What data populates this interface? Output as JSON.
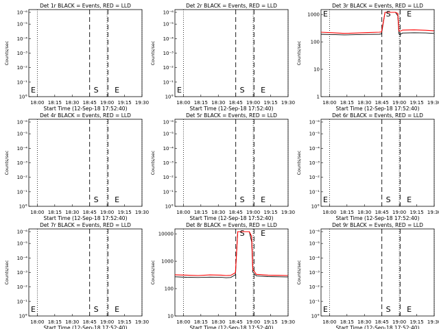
{
  "chart_data": [
    {
      "type": "line",
      "title": "Det 1r BLACK = Events, RED = LLD",
      "xlabel": "Start Time (12-Sep-18 17:52:40)",
      "ylabel": "Counts/sec",
      "x_ticks": [
        "18:00",
        "18:15",
        "18:30",
        "18:45",
        "19:00",
        "19:15",
        "19:30"
      ],
      "y_ticks": [
        "10°",
        "10⁻¹",
        "10⁻²",
        "10⁻³",
        "10⁻⁴",
        "10⁻⁵",
        "10⁻⁶"
      ],
      "y_scale": "log",
      "x_minutes": [
        0,
        97.3
      ],
      "ylim_exp": [
        0,
        -6
      ],
      "markers": [
        {
          "label": "E",
          "x": 0
        },
        {
          "label": "S",
          "x": 54
        },
        {
          "label": "E",
          "x": 72
        }
      ],
      "dotted_lines_x": [
        7.3,
        67.3,
        97.3
      ],
      "dashed_lines_x": [
        52.3,
        68
      ],
      "series": []
    },
    {
      "type": "line",
      "title": "Det 2r BLACK = Events, RED = LLD",
      "xlabel": "Start Time (12-Sep-18 17:52:40)",
      "ylabel": "Counts/sec",
      "x_ticks": [
        "18:00",
        "18:15",
        "18:30",
        "18:45",
        "19:00",
        "19:15",
        "19:30"
      ],
      "y_ticks": [
        "10°",
        "10⁻¹",
        "10⁻²",
        "10⁻³",
        "10⁻⁴",
        "10⁻⁵",
        "10⁻⁶"
      ],
      "y_scale": "log",
      "x_minutes": [
        0,
        97.3
      ],
      "ylim_exp": [
        0,
        -6
      ],
      "markers": [
        {
          "label": "E",
          "x": 0
        },
        {
          "label": "S",
          "x": 54
        },
        {
          "label": "E",
          "x": 72
        }
      ],
      "dotted_lines_x": [
        7.3,
        67.3,
        97.3
      ],
      "dashed_lines_x": [
        52.3,
        68
      ],
      "series": []
    },
    {
      "type": "line",
      "title": "Det 3r BLACK = Events, RED = LLD",
      "xlabel": "Start Time (12-Sep-18 17:52:40)",
      "ylabel": "Counts/sec",
      "x_ticks": [
        "18:00",
        "18:15",
        "18:30",
        "18:45",
        "19:00",
        "19:15",
        "19:30"
      ],
      "y_ticks": [
        "1000",
        "100",
        "10",
        "1"
      ],
      "y_scale": "log",
      "x_minutes": [
        0,
        97.3
      ],
      "ylim": [
        1,
        1200
      ],
      "markers": [
        {
          "label": "E",
          "x": 0
        },
        {
          "label": "S",
          "x": 54
        },
        {
          "label": "E",
          "x": 72
        }
      ],
      "dotted_lines_x": [
        7.3,
        67.3,
        97.3
      ],
      "dashed_lines_x": [
        52.3,
        68
      ],
      "series": [
        {
          "color": "#000000",
          "x": [
            0,
            10,
            20,
            30,
            40,
            50,
            52,
            55,
            60,
            64,
            66,
            67,
            68,
            70,
            80,
            90,
            97
          ],
          "y": [
            190,
            185,
            180,
            183,
            188,
            190,
            195,
            1200,
            1200,
            1200,
            900,
            200,
            185,
            210,
            215,
            212,
            205
          ]
        },
        {
          "color": "#ff0000",
          "x": [
            0,
            10,
            20,
            30,
            40,
            50,
            52,
            55,
            60,
            64,
            66,
            67,
            68,
            70,
            80,
            90,
            97
          ],
          "y": [
            225,
            215,
            205,
            210,
            218,
            225,
            230,
            1200,
            1200,
            1200,
            1100,
            250,
            245,
            270,
            275,
            265,
            255
          ]
        }
      ]
    },
    {
      "type": "line",
      "title": "Det 4r BLACK = Events, RED = LLD",
      "xlabel": "Start Time (12-Sep-18 17:52:40)",
      "ylabel": "Counts/sec",
      "x_ticks": [
        "18:00",
        "18:15",
        "18:30",
        "18:45",
        "19:00",
        "19:15",
        "19:30"
      ],
      "y_ticks": [
        "10°",
        "10⁻¹",
        "10⁻²",
        "10⁻³",
        "10⁻⁴",
        "10⁻⁵",
        "10⁻⁶"
      ],
      "y_scale": "log",
      "x_minutes": [
        0,
        97.3
      ],
      "ylim_exp": [
        0,
        -6
      ],
      "markers": [
        {
          "label": "S",
          "x": 54
        },
        {
          "label": "E",
          "x": 72
        }
      ],
      "dotted_lines_x": [
        7.3,
        67.3,
        97.3
      ],
      "dashed_lines_x": [
        52.3,
        68
      ],
      "series": []
    },
    {
      "type": "line",
      "title": "Det 5r BLACK = Events, RED = LLD",
      "xlabel": "Start Time (12-Sep-18 17:52:40)",
      "ylabel": "Counts/sec",
      "x_ticks": [
        "18:00",
        "18:15",
        "18:30",
        "18:45",
        "19:00",
        "19:15",
        "19:30"
      ],
      "y_ticks": [
        "10°",
        "10⁻¹",
        "10⁻²",
        "10⁻³",
        "10⁻⁴",
        "10⁻⁵",
        "10⁻⁶"
      ],
      "y_scale": "log",
      "x_minutes": [
        0,
        97.3
      ],
      "ylim_exp": [
        0,
        -6
      ],
      "markers": [
        {
          "label": "S",
          "x": 54
        },
        {
          "label": "E",
          "x": 72
        }
      ],
      "dotted_lines_x": [
        7.3,
        67.3,
        97.3
      ],
      "dashed_lines_x": [
        52.3,
        68
      ],
      "series": []
    },
    {
      "type": "line",
      "title": "Det 6r BLACK = Events, RED = LLD",
      "xlabel": "Start Time (12-Sep-18 17:52:40)",
      "ylabel": "Counts/sec",
      "x_ticks": [
        "18:00",
        "18:15",
        "18:30",
        "18:45",
        "19:00",
        "19:15",
        "19:30"
      ],
      "y_ticks": [
        "10°",
        "10⁻¹",
        "10⁻²",
        "10⁻³",
        "10⁻⁴",
        "10⁻⁵",
        "10⁻⁶"
      ],
      "y_scale": "log",
      "x_minutes": [
        0,
        97.3
      ],
      "ylim_exp": [
        0,
        -6
      ],
      "markers": [
        {
          "label": "E",
          "x": 0
        },
        {
          "label": "S",
          "x": 54
        },
        {
          "label": "E",
          "x": 72
        }
      ],
      "dotted_lines_x": [
        7.3,
        67.3,
        97.3
      ],
      "dashed_lines_x": [
        52.3,
        68
      ],
      "series": []
    },
    {
      "type": "line",
      "title": "Det 7r BLACK = Events, RED = LLD",
      "xlabel": "Start Time (12-Sep-18 17:52:40)",
      "ylabel": "Counts/sec",
      "x_ticks": [
        "18:00",
        "18:15",
        "18:30",
        "18:45",
        "19:00",
        "19:15",
        "19:30"
      ],
      "y_ticks": [
        "10°",
        "10⁻¹",
        "10⁻²",
        "10⁻³",
        "10⁻⁴",
        "10⁻⁵",
        "10⁻⁶"
      ],
      "y_scale": "log",
      "x_minutes": [
        0,
        97.3
      ],
      "ylim_exp": [
        0,
        -6
      ],
      "markers": [
        {
          "label": "E",
          "x": 0
        },
        {
          "label": "S",
          "x": 54
        },
        {
          "label": "E",
          "x": 72
        }
      ],
      "dotted_lines_x": [
        7.3,
        67.3,
        97.3
      ],
      "dashed_lines_x": [
        52.3,
        68
      ],
      "series": []
    },
    {
      "type": "line",
      "title": "Det 8r BLACK = Events, RED = LLD",
      "xlabel": "Start Time (12-Sep-18 17:52:40)",
      "ylabel": "Counts/sec",
      "x_ticks": [
        "18:00",
        "18:15",
        "18:30",
        "18:45",
        "19:00",
        "19:15",
        "19:30"
      ],
      "y_ticks": [
        "10000",
        "1000",
        "100",
        "10"
      ],
      "y_scale": "log",
      "x_minutes": [
        0,
        97.3
      ],
      "ylim": [
        10,
        12000
      ],
      "markers": [
        {
          "label": "S",
          "x": 54
        },
        {
          "label": "E",
          "x": 72
        }
      ],
      "dotted_lines_x": [
        7.3,
        67.3,
        97.3
      ],
      "dashed_lines_x": [
        52.3,
        68
      ],
      "series": [
        {
          "color": "#000000",
          "x": [
            0,
            10,
            20,
            30,
            40,
            44,
            48,
            52,
            54,
            56,
            60,
            64,
            66,
            67,
            70,
            80,
            90,
            97
          ],
          "y": [
            270,
            260,
            255,
            262,
            258,
            250,
            255,
            320,
            12000,
            12000,
            12000,
            12000,
            5000,
            400,
            290,
            275,
            270,
            265
          ]
        },
        {
          "color": "#ff0000",
          "x": [
            0,
            10,
            20,
            30,
            40,
            44,
            48,
            52,
            54,
            56,
            60,
            64,
            66,
            67,
            70,
            80,
            90,
            97
          ],
          "y": [
            320,
            310,
            300,
            315,
            310,
            300,
            305,
            380,
            12000,
            12000,
            12000,
            12000,
            8000,
            500,
            330,
            310,
            305,
            300
          ]
        }
      ]
    },
    {
      "type": "line",
      "title": "Det 9r BLACK = Events, RED = LLD",
      "xlabel": "Start Time (12-Sep-18 17:52:40)",
      "ylabel": "Counts/sec",
      "x_ticks": [
        "18:00",
        "18:15",
        "18:30",
        "18:45",
        "19:00",
        "19:15",
        "19:30"
      ],
      "y_ticks": [
        "10°",
        "10⁻¹",
        "10⁻²",
        "10⁻³",
        "10⁻⁴",
        "10⁻⁵",
        "10⁻⁶"
      ],
      "y_scale": "log",
      "x_minutes": [
        0,
        97.3
      ],
      "ylim_exp": [
        0,
        -6
      ],
      "markers": [
        {
          "label": "E",
          "x": 0
        },
        {
          "label": "S",
          "x": 54
        },
        {
          "label": "E",
          "x": 72
        }
      ],
      "dotted_lines_x": [
        7.3,
        67.3,
        97.3
      ],
      "dashed_lines_x": [
        52.3,
        68
      ],
      "series": []
    }
  ]
}
